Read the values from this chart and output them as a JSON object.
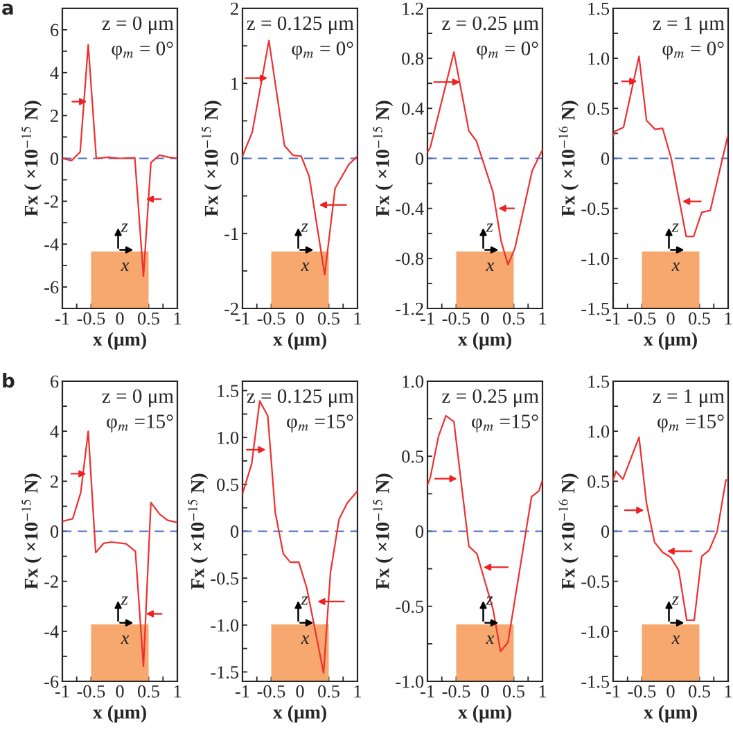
{
  "chart_data": [
    {
      "type": "line",
      "annotations": [
        "z = 0 μm",
        "φ$_{m}$ = 0°",
        "z",
        "x",
        "a"
      ],
      "xlabel": "x (μm)",
      "ylabel": "Fx ( ×10$^{−15}$ N)",
      "xlim": [
        -1,
        1
      ],
      "ylim": [
        -7,
        7
      ],
      "xticks": [
        -1,
        {
          "value": -0.75,
          "label": null
        },
        -0.5,
        {
          "value": -0.25,
          "label": null
        },
        0,
        {
          "value": 0.25,
          "label": null
        },
        0.5,
        {
          "value": 0.75,
          "label": null
        },
        1
      ],
      "yticks": [
        -6,
        {
          "value": -5,
          "label": null
        },
        -4,
        {
          "value": -3,
          "label": null
        },
        -2,
        {
          "value": -1,
          "label": null
        },
        0,
        {
          "value": 1,
          "label": null
        },
        2,
        {
          "value": 3,
          "label": null
        },
        4,
        {
          "value": 5,
          "label": null
        },
        6
      ],
      "ref_lines": [
        {
          "axis": "y",
          "value": 0,
          "color": "#4a6fc0",
          "line_style": "dashed"
        }
      ],
      "series": [
        {
          "color": "#ee3030",
          "x": [
            -1,
            -0.84,
            -0.69,
            -0.55,
            -0.41,
            -0.2,
            0,
            0.26,
            0.41,
            0.54,
            0.69,
            0.85,
            1
          ],
          "values": [
            0,
            -0.1,
            0.3,
            5.3,
            0,
            0.05,
            0,
            0.03,
            -5.5,
            -0.2,
            0.15,
            0.05,
            0
          ]
        }
      ]
    },
    {
      "type": "line",
      "annotations": [
        "z = 0.125 μm",
        "φ$_{m}$ = 0°",
        "z",
        "x"
      ],
      "xlabel": "x (μm)",
      "ylabel": "Fx ( ×10$^{−15}$ N)",
      "xlim": [
        -1,
        1
      ],
      "ylim": [
        -2,
        2
      ],
      "xticks": [
        -1,
        {
          "value": -0.75,
          "label": null
        },
        -0.5,
        {
          "value": -0.25,
          "label": null
        },
        0,
        {
          "value": 0.25,
          "label": null
        },
        0.5,
        {
          "value": 0.75,
          "label": null
        },
        1
      ],
      "yticks": [
        -2,
        {
          "value": -1.5,
          "label": null
        },
        -1,
        {
          "value": -0.5,
          "label": null
        },
        0,
        {
          "value": 0.5,
          "label": null
        },
        1,
        {
          "value": 1.5,
          "label": null
        },
        2
      ],
      "ref_lines": [
        {
          "axis": "y",
          "value": 0,
          "color": "#4a6fc0",
          "line_style": "dashed"
        }
      ],
      "series": [
        {
          "color": "#ee3030",
          "x": [
            -1,
            -0.83,
            -0.54,
            -0.27,
            -0.12,
            0.02,
            0.16,
            0.43,
            0.61,
            0.85,
            1
          ],
          "values": [
            0.03,
            0.35,
            1.57,
            0.17,
            0.04,
            0.03,
            -0.24,
            -1.55,
            -0.4,
            -0.08,
            0.03
          ]
        }
      ]
    },
    {
      "type": "line",
      "annotations": [
        "z = 0.25 μm",
        "φ$_{m}$ = 0°",
        "z",
        "x"
      ],
      "xlabel": "x (μm)",
      "ylabel": "Fx ( ×10$^{−15}$ N)",
      "xlim": [
        -1,
        1
      ],
      "ylim": [
        -1.2,
        1.2
      ],
      "xticks": [
        -1,
        {
          "value": -0.75,
          "label": null
        },
        -0.5,
        {
          "value": -0.25,
          "label": null
        },
        0,
        {
          "value": 0.25,
          "label": null
        },
        0.5,
        {
          "value": 0.75,
          "label": null
        },
        1
      ],
      "yticks": [
        -1.2,
        {
          "value": -1.0,
          "label": null
        },
        -0.8,
        {
          "value": -0.6,
          "label": null
        },
        -0.4,
        {
          "value": -0.2,
          "label": null
        },
        0,
        {
          "value": 0.2,
          "label": null
        },
        0.4,
        {
          "value": 0.6,
          "label": null
        },
        0.8,
        {
          "value": 1.0,
          "label": null
        },
        1.2
      ],
      "ref_lines": [
        {
          "axis": "y",
          "value": 0,
          "color": "#4a6fc0",
          "line_style": "dashed"
        }
      ],
      "series": [
        {
          "color": "#ee3030",
          "x": [
            -1,
            -0.95,
            -0.54,
            -0.28,
            -0.15,
            0.14,
            0.28,
            0.4,
            0.52,
            0.82,
            1
          ],
          "values": [
            0.05,
            0.09,
            0.85,
            0.22,
            0.14,
            -0.27,
            -0.66,
            -0.85,
            -0.72,
            -0.1,
            0.07
          ]
        }
      ]
    },
    {
      "type": "line",
      "annotations": [
        "z = 1 μm",
        "φ$_{m}$ = 0°",
        "z",
        "x"
      ],
      "xlabel": "x (μm)",
      "ylabel": "Fx ( ×10$^{−16}$ N)",
      "xlim": [
        -1,
        1
      ],
      "ylim": [
        -1.5,
        1.5
      ],
      "xticks": [
        -1,
        {
          "value": -0.75,
          "label": null
        },
        -0.5,
        {
          "value": -0.25,
          "label": null
        },
        0,
        {
          "value": 0.25,
          "label": null
        },
        0.5,
        {
          "value": 0.75,
          "label": null
        },
        1
      ],
      "yticks": [
        {
          "value": -1.5,
          "label": "-1.5"
        },
        {
          "value": -1.25,
          "label": null
        },
        {
          "value": -1,
          "label": "-1.0"
        },
        {
          "value": -0.75,
          "label": null
        },
        {
          "value": -0.5,
          "label": "-0.5"
        },
        {
          "value": -0.25,
          "label": null
        },
        0,
        {
          "value": 0.25,
          "label": null
        },
        {
          "value": 0.5,
          "label": "0.5"
        },
        {
          "value": 0.75,
          "label": null
        },
        {
          "value": 1,
          "label": "1.0"
        },
        {
          "value": 1.25,
          "label": null
        },
        {
          "value": 1.5,
          "label": "1.5"
        }
      ],
      "ref_lines": [
        {
          "axis": "y",
          "value": 0,
          "color": "#4a6fc0",
          "line_style": "dashed"
        }
      ],
      "series": [
        {
          "color": "#ee3030",
          "x": [
            -1,
            -0.97,
            -0.82,
            -0.55,
            -0.42,
            -0.27,
            -0.14,
            0.01,
            0.27,
            0.4,
            0.54,
            0.69,
            1
          ],
          "values": [
            0.22,
            0.27,
            0.31,
            1.02,
            0.38,
            0.29,
            0.3,
            0,
            -0.78,
            -0.78,
            -0.54,
            -0.52,
            0.24
          ]
        }
      ]
    },
    {
      "type": "line",
      "annotations": [
        "z = 0 μm",
        "φ$_{m}$ =15°",
        "z",
        "x",
        "b"
      ],
      "xlabel": "x (μm)",
      "ylabel": "Fx ( ×10$^{−15}$ N)",
      "xlim": [
        -1,
        1
      ],
      "ylim": [
        -6,
        6
      ],
      "xticks": [
        -1,
        {
          "value": -0.75,
          "label": null
        },
        -0.5,
        {
          "value": -0.25,
          "label": null
        },
        0,
        {
          "value": 0.25,
          "label": null
        },
        0.5,
        {
          "value": 0.75,
          "label": null
        },
        1
      ],
      "yticks": [
        -6,
        {
          "value": -5,
          "label": null
        },
        -4,
        {
          "value": -3,
          "label": null
        },
        -2,
        {
          "value": -1,
          "label": null
        },
        0,
        {
          "value": 1,
          "label": null
        },
        2,
        {
          "value": 3,
          "label": null
        },
        4,
        {
          "value": 5,
          "label": null
        },
        6
      ],
      "ref_lines": [
        {
          "axis": "y",
          "value": 0,
          "color": "#4a6fc0",
          "line_style": "dashed"
        }
      ],
      "series": [
        {
          "color": "#ee3030",
          "x": [
            -1,
            -0.82,
            -0.68,
            -0.55,
            -0.42,
            -0.28,
            -0.15,
            0.11,
            0.27,
            0.41,
            0.54,
            0.69,
            0.83,
            1
          ],
          "values": [
            0.4,
            0.5,
            1.55,
            4.0,
            -0.85,
            -0.48,
            -0.43,
            -0.5,
            -0.8,
            -5.4,
            1.15,
            0.69,
            0.44,
            0.35
          ]
        }
      ]
    },
    {
      "type": "line",
      "annotations": [
        "z = 0.125 μm",
        "φ$_{m}$ =15°",
        "z",
        "x"
      ],
      "xlabel": "x (μm)",
      "ylabel": "Fx ( ×10$^{−15}$ N)",
      "xlim": [
        -1,
        1
      ],
      "ylim": [
        -1.6,
        1.6
      ],
      "xticks": [
        -1,
        {
          "value": -0.75,
          "label": null
        },
        -0.5,
        {
          "value": -0.25,
          "label": null
        },
        0,
        {
          "value": 0.25,
          "label": null
        },
        0.5,
        {
          "value": 0.75,
          "label": null
        },
        1
      ],
      "yticks": [
        {
          "value": -1.5,
          "label": "-1.5"
        },
        {
          "value": -1.25,
          "label": null
        },
        {
          "value": -1,
          "label": "-1.0"
        },
        {
          "value": -0.75,
          "label": null
        },
        {
          "value": -0.5,
          "label": "-0.5"
        },
        {
          "value": -0.25,
          "label": null
        },
        0,
        {
          "value": 0.25,
          "label": null
        },
        {
          "value": 0.5,
          "label": "0.5"
        },
        {
          "value": 0.75,
          "label": null
        },
        {
          "value": 1,
          "label": "1.0"
        },
        {
          "value": 1.25,
          "label": null
        },
        {
          "value": 1.5,
          "label": "1.5"
        }
      ],
      "ref_lines": [
        {
          "axis": "y",
          "value": 0,
          "color": "#4a6fc0",
          "line_style": "dashed"
        }
      ],
      "series": [
        {
          "color": "#ee3030",
          "x": [
            -1,
            -0.84,
            -0.7,
            -0.56,
            -0.43,
            -0.29,
            -0.17,
            -0.02,
            0.12,
            0.41,
            0.53,
            0.68,
            0.82,
            1
          ],
          "values": [
            0.4,
            0.72,
            1.39,
            1.23,
            0.2,
            -0.24,
            -0.33,
            -0.33,
            -0.61,
            -1.51,
            -0.44,
            0.13,
            0.3,
            0.43
          ]
        }
      ]
    },
    {
      "type": "line",
      "annotations": [
        "z = 0.25 μm",
        "φ$_{m}$ =15°",
        "z",
        "x"
      ],
      "xlabel": "x (μm)",
      "ylabel": "Fx ( ×10$^{−15}$ N)",
      "xlim": [
        -1,
        1
      ],
      "ylim": [
        -1,
        1
      ],
      "xticks": [
        -1,
        {
          "value": -0.75,
          "label": null
        },
        -0.5,
        {
          "value": -0.25,
          "label": null
        },
        0,
        {
          "value": 0.25,
          "label": null
        },
        0.5,
        {
          "value": 0.75,
          "label": null
        },
        1
      ],
      "yticks": [
        {
          "value": -1,
          "label": "-1.0"
        },
        {
          "value": -0.75,
          "label": null
        },
        {
          "value": -0.5,
          "label": "-0.5"
        },
        {
          "value": -0.25,
          "label": null
        },
        0,
        {
          "value": 0.25,
          "label": null
        },
        {
          "value": 0.5,
          "label": "0.5"
        },
        {
          "value": 0.75,
          "label": null
        },
        {
          "value": 1,
          "label": "1.0"
        }
      ],
      "ref_lines": [
        {
          "axis": "y",
          "value": 0,
          "color": "#4a6fc0",
          "line_style": "dashed"
        }
      ],
      "series": [
        {
          "color": "#ee3030",
          "x": [
            -1,
            -0.95,
            -0.81,
            -0.68,
            -0.54,
            -0.28,
            -0.14,
            0.14,
            0.27,
            0.4,
            0.81,
            0.94,
            1
          ],
          "values": [
            0.31,
            0.36,
            0.63,
            0.77,
            0.73,
            -0.1,
            -0.15,
            -0.52,
            -0.8,
            -0.74,
            0.23,
            0.27,
            0.34
          ]
        }
      ]
    },
    {
      "type": "line",
      "annotations": [
        "z = 1 μm",
        "φ$_{m}$ =15°",
        "z",
        "x"
      ],
      "xlabel": "x (μm)",
      "ylabel": "Fx ( ×10$^{−16}$ N)",
      "xlim": [
        -1,
        1
      ],
      "ylim": [
        -1.5,
        1.5
      ],
      "xticks": [
        -1,
        {
          "value": -0.75,
          "label": null
        },
        -0.5,
        {
          "value": -0.25,
          "label": null
        },
        0,
        {
          "value": 0.25,
          "label": null
        },
        0.5,
        {
          "value": 0.75,
          "label": null
        },
        1
      ],
      "yticks": [
        {
          "value": -1.5,
          "label": "-1.5"
        },
        {
          "value": -1.25,
          "label": null
        },
        {
          "value": -1,
          "label": "-1.0"
        },
        {
          "value": -0.75,
          "label": null
        },
        {
          "value": -0.5,
          "label": "-0.5"
        },
        {
          "value": -0.25,
          "label": null
        },
        0,
        {
          "value": 0.25,
          "label": null
        },
        {
          "value": 0.5,
          "label": "0.5"
        },
        {
          "value": 0.75,
          "label": null
        },
        {
          "value": 1,
          "label": "1.0"
        },
        {
          "value": 1.25,
          "label": null
        },
        {
          "value": 1.5,
          "label": "1.5"
        }
      ],
      "ref_lines": [
        {
          "axis": "y",
          "value": 0,
          "color": "#4a6fc0",
          "line_style": "dashed"
        }
      ],
      "series": [
        {
          "color": "#ee3030",
          "x": [
            -1,
            -0.95,
            -0.83,
            -0.55,
            -0.42,
            -0.28,
            -0.14,
            0,
            0.14,
            0.28,
            0.41,
            0.54,
            0.67,
            0.81,
            0.96,
            1
          ],
          "values": [
            0.51,
            0.6,
            0.52,
            0.94,
            0.28,
            -0.11,
            -0.21,
            -0.26,
            -0.39,
            -0.89,
            -0.89,
            -0.25,
            -0.19,
            0,
            0.51,
            0.52
          ]
        }
      ]
    }
  ]
}
